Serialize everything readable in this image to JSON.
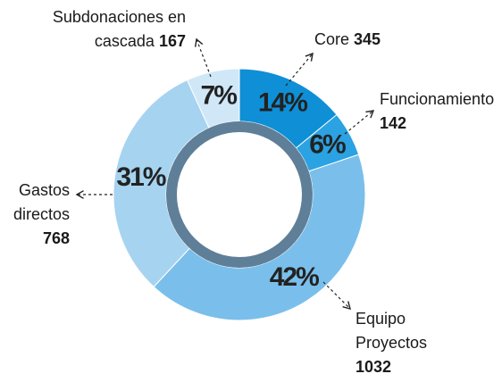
{
  "chart_data": {
    "type": "pie",
    "categories": [
      "Core",
      "Funcionamiento",
      "Equipo Proyectos",
      "Gastos directos",
      "Subdonaciones en cascada"
    ],
    "values": [
      345,
      142,
      1032,
      768,
      167
    ],
    "percent_labels": [
      "14%",
      "6%",
      "42%",
      "31%",
      "7%"
    ],
    "colors": [
      "#0f8fd6",
      "#2ba2e2",
      "#7abfeb",
      "#a6d3f0",
      "#d0e7f8"
    ]
  }
}
